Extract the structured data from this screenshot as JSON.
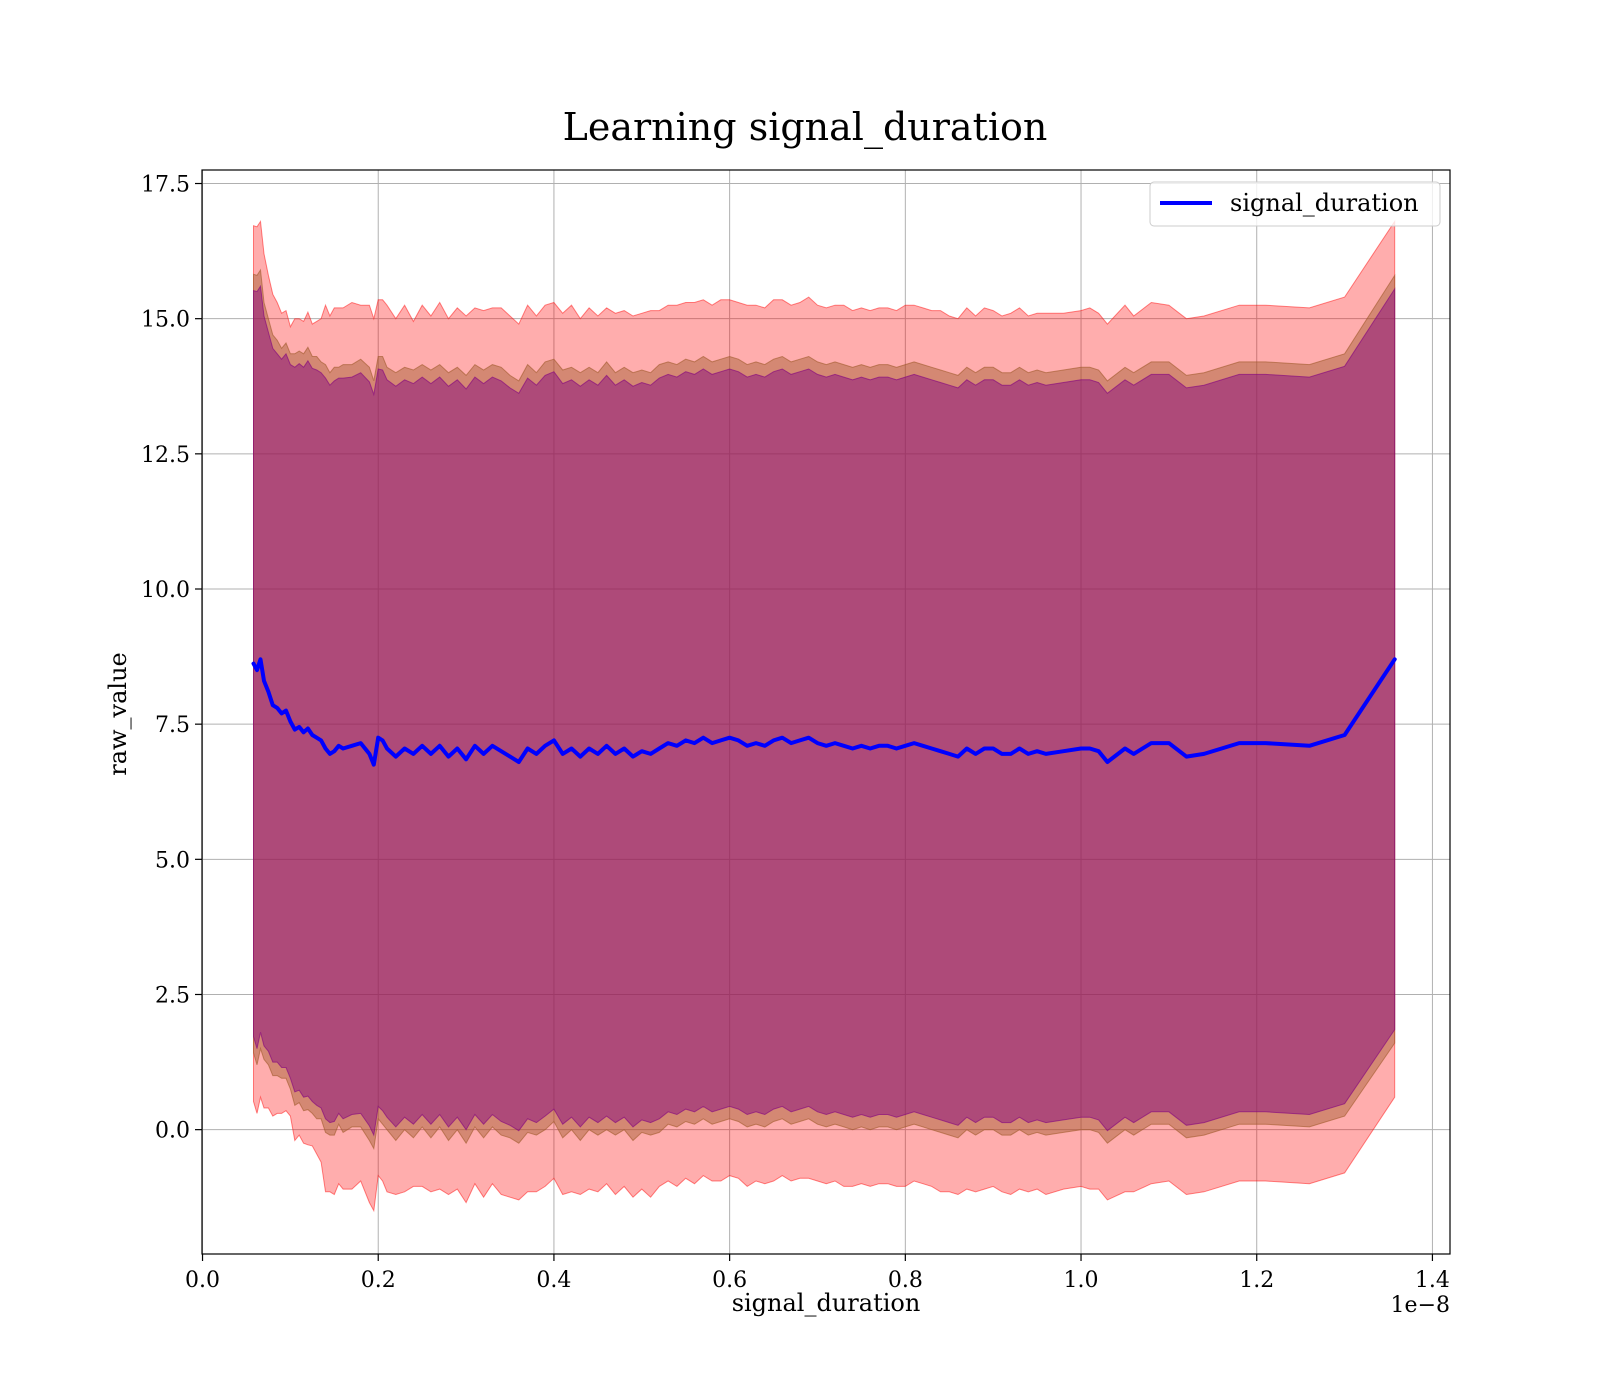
{
  "chart_data": {
    "type": "line",
    "title": "Learning signal_duration",
    "xlabel": "signal_duration",
    "ylabel": "raw_value",
    "x_offset_label": "1e−8",
    "xlim": [
      -0.0006,
      1.42
    ],
    "ylim": [
      -2.3,
      17.75
    ],
    "x_ticks": [
      0.0,
      0.2,
      0.4,
      0.6,
      0.8,
      1.0,
      1.2,
      1.4
    ],
    "x_tick_labels": [
      "0.0",
      "0.2",
      "0.4",
      "0.6",
      "0.8",
      "1.0",
      "1.2",
      "1.4"
    ],
    "y_ticks": [
      0.0,
      2.5,
      5.0,
      7.5,
      10.0,
      12.5,
      15.0,
      17.5
    ],
    "y_tick_labels": [
      "0.0",
      "2.5",
      "5.0",
      "7.5",
      "10.0",
      "12.5",
      "15.0",
      "17.5"
    ],
    "grid": true,
    "legend_position": "upper right",
    "colors": {
      "line": "#0000ff",
      "outer_band": "#ff0000",
      "middle_band": "#a05a2c",
      "inner_band": "#800080"
    },
    "band_alpha": {
      "outer": 0.32,
      "middle": 0.45,
      "inner": 0.45
    },
    "series": [
      {
        "name": "signal_duration",
        "x": [
          0.058,
          0.062,
          0.066,
          0.07,
          0.075,
          0.08,
          0.085,
          0.09,
          0.095,
          0.1,
          0.105,
          0.11,
          0.115,
          0.12,
          0.125,
          0.13,
          0.135,
          0.14,
          0.145,
          0.15,
          0.155,
          0.16,
          0.17,
          0.18,
          0.19,
          0.195,
          0.2,
          0.205,
          0.21,
          0.22,
          0.23,
          0.24,
          0.25,
          0.26,
          0.27,
          0.28,
          0.29,
          0.3,
          0.31,
          0.32,
          0.33,
          0.34,
          0.35,
          0.36,
          0.37,
          0.38,
          0.39,
          0.4,
          0.41,
          0.42,
          0.43,
          0.44,
          0.45,
          0.46,
          0.47,
          0.48,
          0.49,
          0.5,
          0.51,
          0.52,
          0.53,
          0.54,
          0.55,
          0.56,
          0.57,
          0.58,
          0.59,
          0.6,
          0.61,
          0.62,
          0.63,
          0.64,
          0.65,
          0.66,
          0.67,
          0.68,
          0.69,
          0.7,
          0.71,
          0.72,
          0.73,
          0.74,
          0.75,
          0.76,
          0.77,
          0.78,
          0.79,
          0.8,
          0.81,
          0.82,
          0.83,
          0.84,
          0.85,
          0.86,
          0.87,
          0.88,
          0.89,
          0.9,
          0.91,
          0.92,
          0.93,
          0.94,
          0.95,
          0.96,
          0.98,
          1.0,
          1.01,
          1.02,
          1.03,
          1.05,
          1.06,
          1.08,
          1.1,
          1.12,
          1.14,
          1.18,
          1.21,
          1.26,
          1.3,
          1.357
        ],
        "y": [
          8.62,
          8.5,
          8.7,
          8.3,
          8.1,
          7.85,
          7.8,
          7.7,
          7.75,
          7.55,
          7.4,
          7.45,
          7.35,
          7.42,
          7.3,
          7.25,
          7.2,
          7.05,
          6.95,
          7.0,
          7.1,
          7.05,
          7.1,
          7.15,
          6.95,
          6.75,
          7.25,
          7.2,
          7.05,
          6.9,
          7.05,
          6.95,
          7.1,
          6.95,
          7.1,
          6.9,
          7.05,
          6.85,
          7.1,
          6.95,
          7.1,
          7.0,
          6.9,
          6.8,
          7.05,
          6.95,
          7.1,
          7.2,
          6.95,
          7.05,
          6.9,
          7.05,
          6.95,
          7.1,
          6.95,
          7.05,
          6.9,
          7.0,
          6.95,
          7.05,
          7.15,
          7.1,
          7.2,
          7.15,
          7.25,
          7.15,
          7.2,
          7.25,
          7.2,
          7.1,
          7.15,
          7.1,
          7.2,
          7.25,
          7.15,
          7.2,
          7.25,
          7.15,
          7.1,
          7.15,
          7.1,
          7.05,
          7.1,
          7.05,
          7.1,
          7.1,
          7.05,
          7.1,
          7.15,
          7.1,
          7.05,
          7.0,
          6.95,
          6.9,
          7.05,
          6.95,
          7.05,
          7.05,
          6.95,
          6.95,
          7.05,
          6.95,
          7.0,
          6.95,
          7.0,
          7.05,
          7.05,
          7.0,
          6.8,
          7.05,
          6.95,
          7.15,
          7.15,
          6.9,
          6.95,
          7.15,
          7.15,
          7.1,
          7.3,
          8.7
        ],
        "bands": [
          {
            "level": "outer",
            "half_width": [
              8.1,
              8.2,
              8.1,
              7.9,
              7.7,
              7.6,
              7.5,
              7.4,
              7.4,
              7.3,
              7.6,
              7.55,
              7.6,
              7.7,
              7.6,
              7.7,
              7.8,
              8.2,
              8.1,
              8.2,
              8.1,
              8.15,
              8.2,
              8.1,
              8.3,
              8.25,
              8.1,
              8.15,
              8.2,
              8.1,
              8.2,
              8.0,
              8.15,
              8.1,
              8.2,
              8.1,
              8.15,
              8.2,
              8.1,
              8.2,
              8.1,
              8.2,
              8.15,
              8.1,
              8.2,
              8.1,
              8.15,
              8.1,
              8.15,
              8.2,
              8.1,
              8.15,
              8.1,
              8.1,
              8.15,
              8.1,
              8.15,
              8.1,
              8.2,
              8.1,
              8.1,
              8.15,
              8.1,
              8.15,
              8.1,
              8.1,
              8.15,
              8.1,
              8.1,
              8.15,
              8.1,
              8.1,
              8.15,
              8.1,
              8.1,
              8.1,
              8.15,
              8.1,
              8.1,
              8.1,
              8.15,
              8.1,
              8.1,
              8.1,
              8.1,
              8.1,
              8.1,
              8.15,
              8.1,
              8.1,
              8.1,
              8.15,
              8.1,
              8.1,
              8.15,
              8.1,
              8.15,
              8.1,
              8.1,
              8.15,
              8.15,
              8.1,
              8.1,
              8.15,
              8.1,
              8.1,
              8.15,
              8.1,
              8.1,
              8.2,
              8.1,
              8.15,
              8.1,
              8.1,
              8.1,
              8.1,
              8.1,
              8.1,
              8.1,
              8.1
            ]
          },
          {
            "level": "middle",
            "half_width": [
              7.2,
              7.3,
              7.2,
              7.0,
              6.9,
              6.85,
              6.8,
              6.75,
              6.8,
              6.8,
              6.95,
              6.95,
              7.0,
              7.05,
              7.0,
              7.05,
              7.0,
              7.1,
              7.05,
              7.1,
              7.0,
              7.1,
              7.05,
              7.1,
              7.15,
              7.1,
              7.05,
              7.1,
              7.05,
              7.1,
              7.05,
              7.1,
              7.05,
              7.1,
              7.05,
              7.1,
              7.05,
              7.1,
              7.05,
              7.1,
              7.05,
              7.1,
              7.05,
              7.05,
              7.1,
              7.05,
              7.1,
              7.05,
              7.1,
              7.05,
              7.1,
              7.05,
              7.05,
              7.1,
              7.05,
              7.05,
              7.1,
              7.05,
              7.05,
              7.1,
              7.05,
              7.05,
              7.05,
              7.05,
              7.05,
              7.05,
              7.05,
              7.05,
              7.05,
              7.05,
              7.05,
              7.05,
              7.05,
              7.05,
              7.05,
              7.05,
              7.05,
              7.05,
              7.05,
              7.05,
              7.05,
              7.05,
              7.05,
              7.05,
              7.05,
              7.05,
              7.05,
              7.05,
              7.05,
              7.05,
              7.05,
              7.05,
              7.05,
              7.05,
              7.05,
              7.05,
              7.05,
              7.05,
              7.05,
              7.05,
              7.05,
              7.05,
              7.05,
              7.05,
              7.05,
              7.05,
              7.05,
              7.05,
              7.05,
              7.05,
              7.05,
              7.05,
              7.05,
              7.05,
              7.05,
              7.05,
              7.05,
              7.05,
              7.05,
              7.1
            ]
          },
          {
            "level": "inner",
            "half_width": [
              6.9,
              7.0,
              6.9,
              6.75,
              6.65,
              6.6,
              6.55,
              6.55,
              6.6,
              6.6,
              6.7,
              6.72,
              6.75,
              6.8,
              6.78,
              6.8,
              6.8,
              6.85,
              6.82,
              6.85,
              6.8,
              6.85,
              6.82,
              6.85,
              6.88,
              6.85,
              6.82,
              6.85,
              6.82,
              6.85,
              6.82,
              6.85,
              6.82,
              6.85,
              6.82,
              6.85,
              6.82,
              6.85,
              6.82,
              6.85,
              6.82,
              6.85,
              6.82,
              6.82,
              6.85,
              6.82,
              6.85,
              6.82,
              6.85,
              6.82,
              6.85,
              6.82,
              6.82,
              6.85,
              6.82,
              6.82,
              6.85,
              6.82,
              6.82,
              6.85,
              6.82,
              6.82,
              6.82,
              6.82,
              6.82,
              6.82,
              6.82,
              6.82,
              6.82,
              6.82,
              6.82,
              6.82,
              6.82,
              6.82,
              6.82,
              6.82,
              6.82,
              6.82,
              6.82,
              6.82,
              6.82,
              6.82,
              6.82,
              6.82,
              6.82,
              6.82,
              6.82,
              6.82,
              6.82,
              6.82,
              6.82,
              6.82,
              6.82,
              6.82,
              6.82,
              6.82,
              6.82,
              6.82,
              6.82,
              6.82,
              6.82,
              6.82,
              6.82,
              6.82,
              6.82,
              6.82,
              6.82,
              6.82,
              6.82,
              6.82,
              6.82,
              6.82,
              6.82,
              6.82,
              6.82,
              6.82,
              6.82,
              6.82,
              6.82,
              6.85
            ]
          }
        ]
      }
    ]
  }
}
